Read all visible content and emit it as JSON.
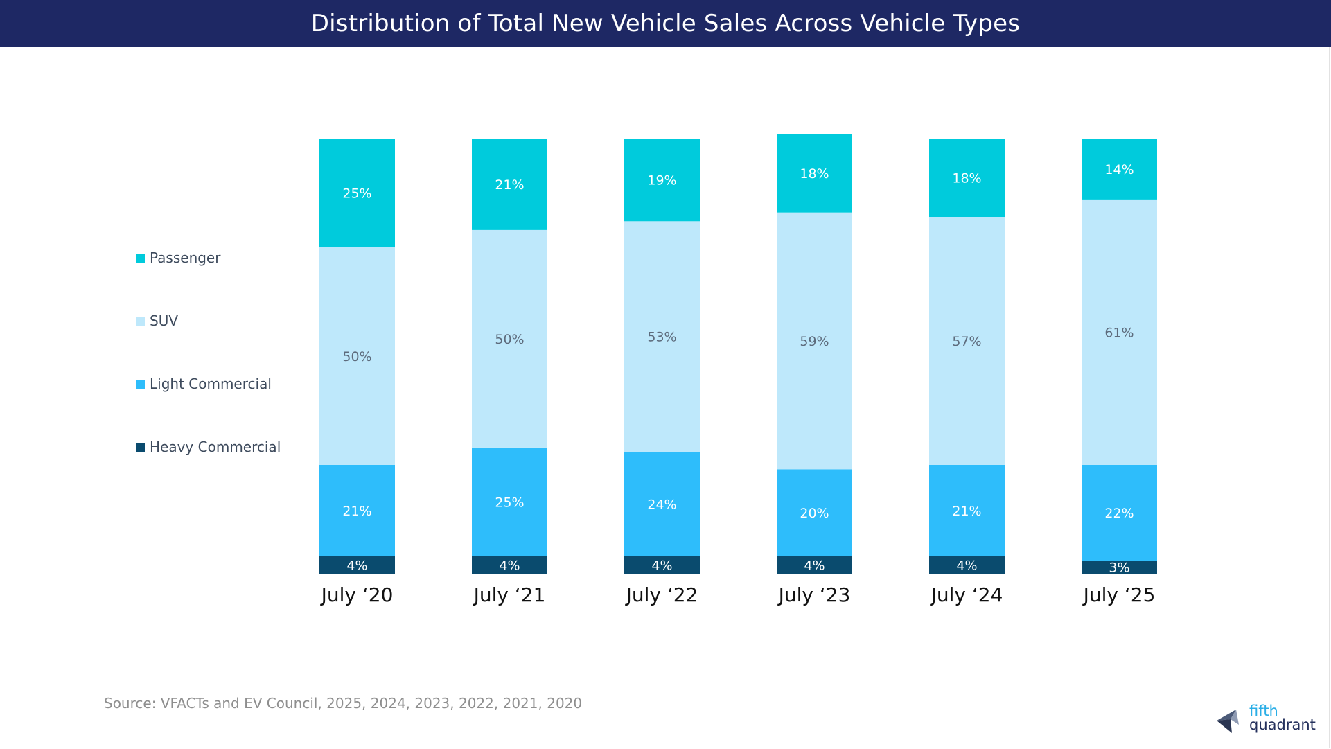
{
  "title": "Distribution of Total New Vehicle Sales Across Vehicle Types",
  "source": "Source: VFACTs and EV Council, 2025, 2024, 2023, 2022, 2021, 2020",
  "logo": {
    "line1": "fifth",
    "line2": "quadrant",
    "icon": "fifth-quadrant-logo-icon"
  },
  "colors": {
    "title_bar": "#1e2864",
    "Passenger": "#00cbdc",
    "SUV": "#bee8fb",
    "Light Commercial": "#2ebdfb",
    "Heavy Commercial": "#0a4b6e"
  },
  "legend": [
    {
      "label": "Passenger",
      "color": "#00cbdc"
    },
    {
      "label": "SUV",
      "color": "#bee8fb"
    },
    {
      "label": "Light Commercial",
      "color": "#2ebdfb"
    },
    {
      "label": "Heavy Commercial",
      "color": "#0a4b6e"
    }
  ],
  "chart_data": {
    "type": "bar",
    "stacked": true,
    "percent": true,
    "title": "Distribution of Total New Vehicle Sales Across Vehicle Types",
    "categories": [
      "July ‘20",
      "July ‘21",
      "July ‘22",
      "July ‘23",
      "July ‘24",
      "July ‘25"
    ],
    "series": [
      {
        "name": "Heavy Commercial",
        "values": [
          4,
          4,
          4,
          4,
          4,
          3
        ],
        "labels": [
          "4%",
          "4%",
          "4%",
          "4%",
          "4%",
          "3%"
        ]
      },
      {
        "name": "Light Commercial",
        "values": [
          21,
          25,
          24,
          20,
          21,
          22
        ],
        "labels": [
          "21%",
          "25%",
          "24%",
          "20%",
          "21%",
          "22%"
        ]
      },
      {
        "name": "SUV",
        "values": [
          50,
          50,
          53,
          59,
          57,
          61
        ],
        "labels": [
          "50%",
          "50%",
          "53%",
          "59%",
          "57%",
          "61%"
        ]
      },
      {
        "name": "Passenger",
        "values": [
          25,
          21,
          19,
          18,
          18,
          14
        ],
        "labels": [
          "25%",
          "21%",
          "19%",
          "18%",
          "18%",
          "14%"
        ]
      }
    ],
    "ylim": [
      0,
      100
    ],
    "xlabel": "",
    "ylabel": "",
    "legend_position": "left"
  }
}
